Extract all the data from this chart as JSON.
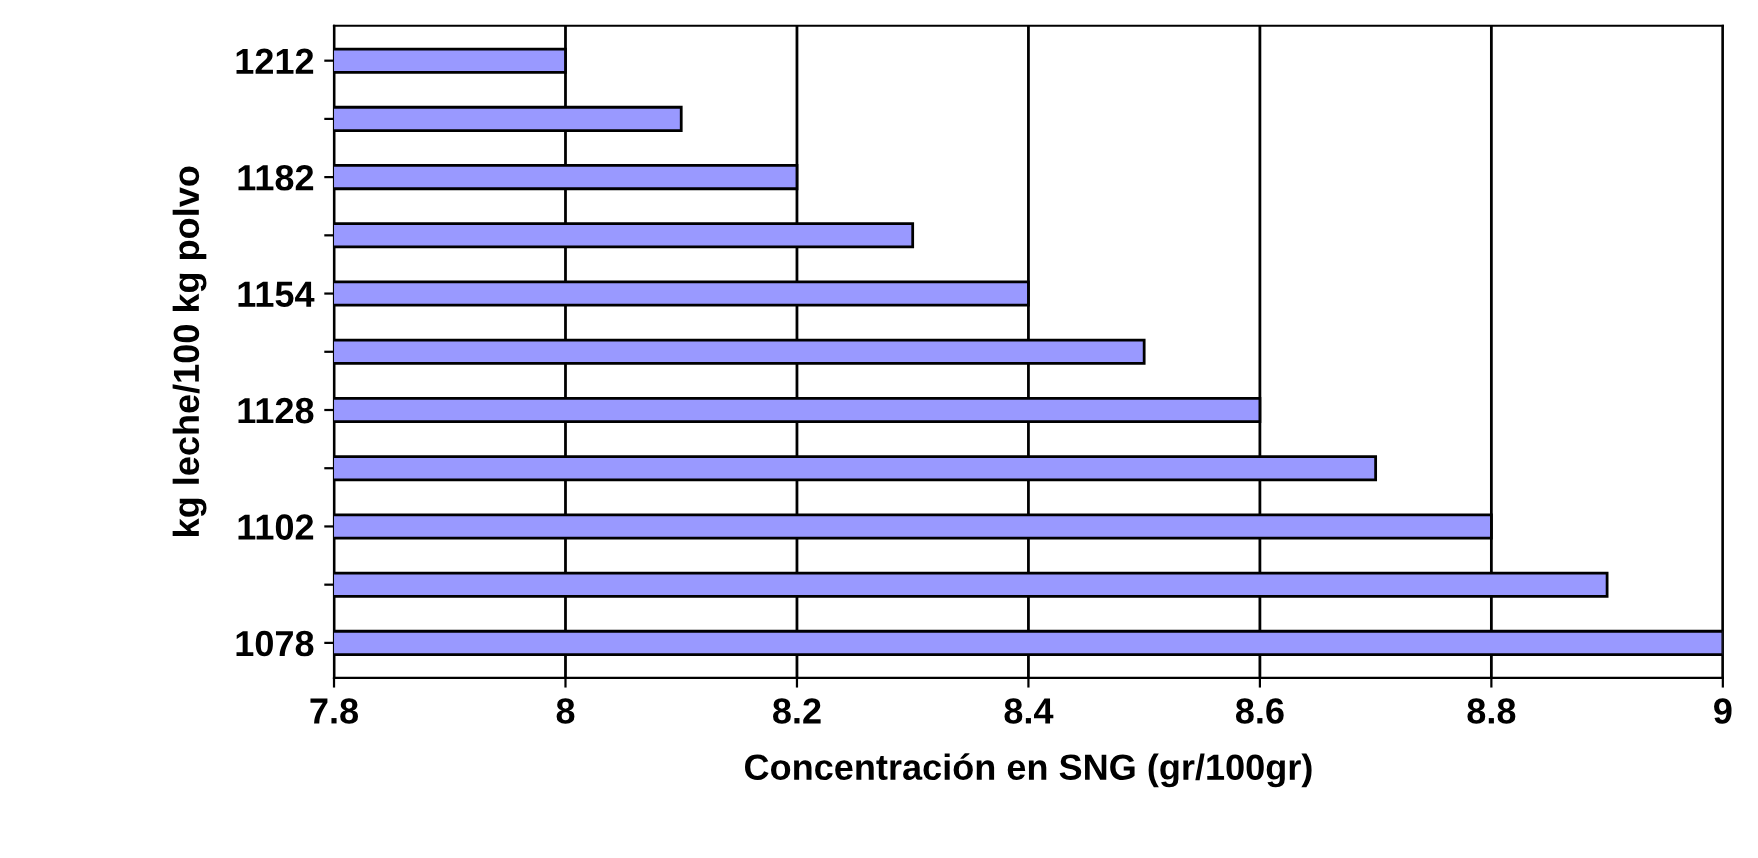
{
  "chart_data": {
    "type": "bar",
    "orientation": "horizontal",
    "xlabel": "Concentración en SNG (gr/100gr)",
    "ylabel": "kg leche/100 kg polvo",
    "categories": [
      "1212",
      null,
      "1182",
      null,
      "1154",
      null,
      "1128",
      null,
      "1102",
      null,
      "1078"
    ],
    "values": [
      8.0,
      8.1,
      8.2,
      8.3,
      8.4,
      8.5,
      8.6,
      8.7,
      8.8,
      8.9,
      9.0
    ],
    "color": "#9999ff",
    "xlim": [
      7.8,
      9
    ],
    "xticks": [
      7.8,
      8,
      8.2,
      8.4,
      8.6,
      8.8,
      9
    ],
    "grid": "x",
    "legend": false
  }
}
